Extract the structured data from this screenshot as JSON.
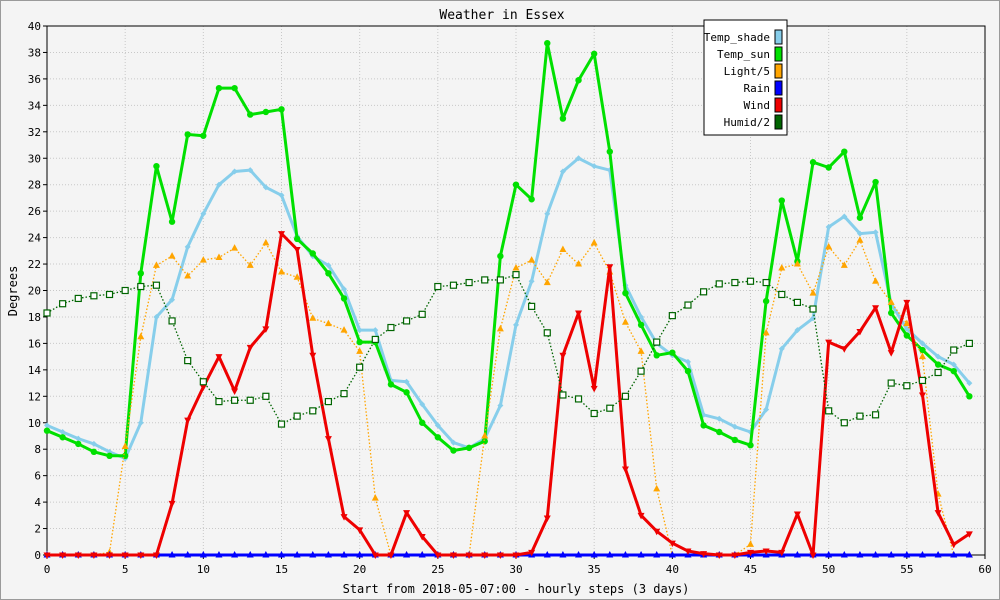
{
  "chart_data": {
    "type": "line",
    "title": "Weather in Essex",
    "xlabel": "Start from 2018-05-07:00 - hourly steps (3 days)",
    "ylabel": "Degrees",
    "xlim": [
      0,
      60
    ],
    "ylim": [
      0,
      40
    ],
    "x_ticks": [
      0,
      5,
      10,
      15,
      20,
      25,
      30,
      35,
      40,
      45,
      50,
      55,
      60
    ],
    "y_ticks": [
      0,
      2,
      4,
      6,
      8,
      10,
      12,
      14,
      16,
      18,
      20,
      22,
      24,
      26,
      28,
      30,
      32,
      34,
      36,
      38,
      40
    ],
    "grid": true,
    "legend_position": "top-right",
    "x": [
      0,
      1,
      2,
      3,
      4,
      5,
      6,
      7,
      8,
      9,
      10,
      11,
      12,
      13,
      14,
      15,
      16,
      17,
      18,
      19,
      20,
      21,
      22,
      23,
      24,
      25,
      26,
      27,
      28,
      29,
      30,
      31,
      32,
      33,
      34,
      35,
      36,
      37,
      38,
      39,
      40,
      41,
      42,
      43,
      44,
      45,
      46,
      47,
      48,
      49,
      50,
      51,
      52,
      53,
      54,
      55,
      56,
      57,
      58,
      59
    ],
    "series": [
      {
        "name": "Temp_shade",
        "color": "#87ceeb",
        "style": "solid-thick",
        "marker": "diamond",
        "values": [
          9.8,
          9.3,
          8.8,
          8.4,
          7.8,
          7.3,
          10.0,
          18.0,
          19.3,
          23.3,
          25.8,
          28.0,
          29.0,
          29.1,
          27.8,
          27.2,
          24.1,
          22.6,
          21.9,
          20.1,
          17.0,
          17.0,
          13.2,
          13.1,
          11.4,
          9.8,
          8.5,
          8.1,
          8.8,
          11.3,
          17.4,
          20.7,
          25.8,
          29.0,
          30.0,
          29.4,
          29.1,
          20.4,
          18.0,
          16.0,
          15.1,
          14.6,
          10.6,
          10.3,
          9.7,
          9.3,
          11.0,
          15.6,
          17.0,
          17.9,
          24.8,
          25.6,
          24.3,
          24.4,
          19.0,
          17.1,
          16.0,
          15.0,
          14.4,
          13.0
        ]
      },
      {
        "name": "Temp_sun",
        "color": "#00e000",
        "style": "solid-thick",
        "marker": "circle",
        "values": [
          9.4,
          8.9,
          8.4,
          7.8,
          7.5,
          7.5,
          21.3,
          29.4,
          25.2,
          31.8,
          31.7,
          35.3,
          35.3,
          33.3,
          33.5,
          33.7,
          23.9,
          22.8,
          21.3,
          19.4,
          16.1,
          16.1,
          12.9,
          12.3,
          10.0,
          8.9,
          7.9,
          8.1,
          8.6,
          22.6,
          28.0,
          26.9,
          38.7,
          33.0,
          35.9,
          37.9,
          30.5,
          19.8,
          17.4,
          15.1,
          15.3,
          13.9,
          9.8,
          9.3,
          8.7,
          8.3,
          19.2,
          26.8,
          22.2,
          29.7,
          29.3,
          30.5,
          25.5,
          28.2,
          18.3,
          16.6,
          15.5,
          14.4,
          13.9,
          12.0
        ]
      },
      {
        "name": "Light/5",
        "color": "#ffa500",
        "style": "dotted",
        "marker": "triangle-up",
        "values": [
          0,
          0,
          0,
          0,
          0.2,
          8.2,
          16.5,
          21.9,
          22.6,
          21.1,
          22.3,
          22.5,
          23.2,
          21.9,
          23.6,
          21.4,
          21.0,
          17.9,
          17.5,
          17.0,
          15.4,
          4.3,
          0,
          0,
          0,
          0,
          0,
          0,
          9.0,
          17.1,
          21.7,
          22.3,
          20.6,
          23.1,
          22.0,
          23.6,
          21.4,
          17.6,
          15.4,
          5.0,
          0,
          0,
          0,
          0,
          0,
          0.8,
          16.8,
          21.7,
          22.0,
          19.8,
          23.3,
          21.9,
          23.8,
          20.7,
          19.1,
          17.5,
          15.0,
          4.6,
          0,
          0
        ]
      },
      {
        "name": "Rain",
        "color": "#0000ff",
        "style": "solid-thick",
        "marker": "triangle-up",
        "values": [
          0,
          0,
          0,
          0,
          0,
          0,
          0,
          0,
          0,
          0,
          0,
          0,
          0,
          0,
          0,
          0,
          0,
          0,
          0,
          0,
          0,
          0,
          0,
          0,
          0,
          0,
          0,
          0,
          0,
          0,
          0,
          0,
          0,
          0,
          0,
          0,
          0,
          0,
          0,
          0,
          0,
          0,
          0,
          0,
          0,
          0,
          0,
          0,
          0,
          0,
          0,
          0,
          0,
          0,
          0,
          0,
          0,
          0,
          0,
          0
        ]
      },
      {
        "name": "Wind",
        "color": "#ee0000",
        "style": "solid-thick",
        "marker": "triangle-down",
        "values": [
          0,
          0,
          0,
          0,
          0,
          0,
          0,
          0,
          3.9,
          10.2,
          12.7,
          15.0,
          12.4,
          15.7,
          17.1,
          24.3,
          23.1,
          15.1,
          8.8,
          2.9,
          1.9,
          0,
          0,
          3.2,
          1.4,
          0,
          0,
          0,
          0,
          0,
          0,
          0.2,
          2.8,
          15.1,
          18.3,
          12.6,
          21.8,
          6.5,
          3.0,
          1.8,
          0.9,
          0.3,
          0.1,
          0,
          0,
          0.2,
          0.3,
          0.2,
          3.1,
          0,
          16.1,
          15.6,
          16.9,
          18.7,
          15.3,
          19.1,
          12.1,
          3.2,
          0.8,
          1.6
        ]
      },
      {
        "name": "Humid/2",
        "color": "#006400",
        "style": "dotted",
        "marker": "square-open",
        "values": [
          18.3,
          19.0,
          19.4,
          19.6,
          19.7,
          20.0,
          20.3,
          20.4,
          17.7,
          14.7,
          13.1,
          11.6,
          11.7,
          11.7,
          12.0,
          9.9,
          10.5,
          10.9,
          11.6,
          12.2,
          14.2,
          16.3,
          17.2,
          17.7,
          18.2,
          20.3,
          20.4,
          20.6,
          20.8,
          20.8,
          21.2,
          18.8,
          16.8,
          12.1,
          11.8,
          10.7,
          11.1,
          12.0,
          13.9,
          16.1,
          18.1,
          18.9,
          19.9,
          20.5,
          20.6,
          20.7,
          20.6,
          19.7,
          19.1,
          18.6,
          10.9,
          10.0,
          10.5,
          10.6,
          13.0,
          12.8,
          13.2,
          13.8,
          15.5,
          16.0
        ]
      }
    ]
  }
}
